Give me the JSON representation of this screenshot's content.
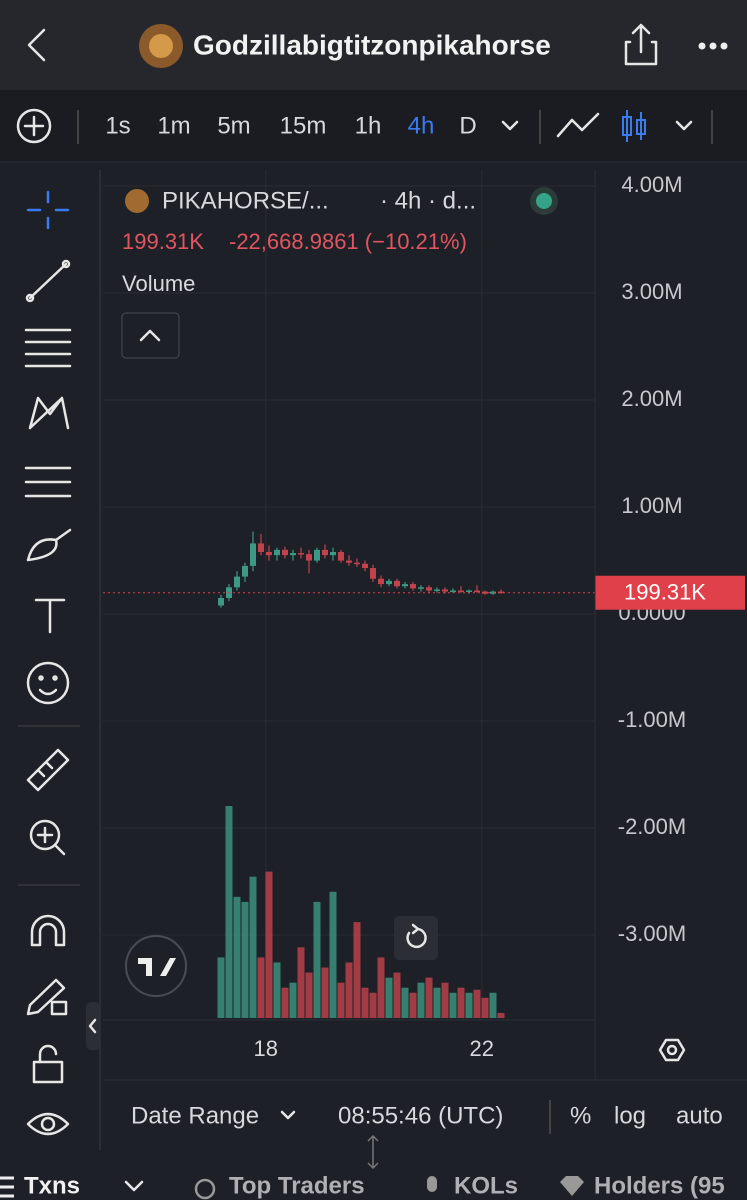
{
  "header": {
    "title": "Godzillabigtitzonpikahorse"
  },
  "toolbar": {
    "timeframes": [
      "1s",
      "1m",
      "5m",
      "15m",
      "1h",
      "4h",
      "D"
    ],
    "active": 5
  },
  "legend": {
    "symbol": "PIKAHORSE/...",
    "interval": "· 4h · d...",
    "price": "199.31K",
    "change": "-22,668.9861 (−10.21%)",
    "study": "Volume"
  },
  "chart": {
    "type": "candlestick",
    "ylim": [
      -3794000,
      4150000
    ],
    "yticks": [
      {
        "value": 4000000,
        "label": "4.00M"
      },
      {
        "value": 3000000,
        "label": "3.00M"
      },
      {
        "value": 2000000,
        "label": "2.00M"
      },
      {
        "value": 1000000,
        "label": "1.00M"
      },
      {
        "value": 0,
        "label": "0.0000"
      },
      {
        "value": -1000000,
        "label": "-1.00M"
      },
      {
        "value": -2000000,
        "label": "-2.00M"
      },
      {
        "value": -3000000,
        "label": "-3.00M"
      }
    ],
    "xticks": [
      {
        "index": 5.6,
        "label": "18"
      },
      {
        "index": 32.6,
        "label": "22"
      }
    ],
    "last_price": {
      "value": 199310,
      "label": "199.31K"
    },
    "up_color": "#3d9984",
    "down_color": "#c2434c",
    "candles": [
      {
        "open": 80000,
        "high": 180000,
        "low": 60000,
        "close": 150000
      },
      {
        "open": 150000,
        "high": 280000,
        "low": 120000,
        "close": 250000
      },
      {
        "open": 250000,
        "high": 400000,
        "low": 220000,
        "close": 350000
      },
      {
        "open": 350000,
        "high": 480000,
        "low": 300000,
        "close": 450000
      },
      {
        "open": 450000,
        "high": 770000,
        "low": 400000,
        "close": 660000
      },
      {
        "open": 660000,
        "high": 750000,
        "low": 550000,
        "close": 580000
      },
      {
        "open": 580000,
        "high": 640000,
        "low": 500000,
        "close": 550000
      },
      {
        "open": 550000,
        "high": 620000,
        "low": 500000,
        "close": 600000
      },
      {
        "open": 600000,
        "high": 630000,
        "low": 520000,
        "close": 550000
      },
      {
        "open": 550000,
        "high": 600000,
        "low": 500000,
        "close": 570000
      },
      {
        "open": 570000,
        "high": 620000,
        "low": 520000,
        "close": 560000
      },
      {
        "open": 560000,
        "high": 600000,
        "low": 380000,
        "close": 500000
      },
      {
        "open": 500000,
        "high": 620000,
        "low": 480000,
        "close": 600000
      },
      {
        "open": 600000,
        "high": 650000,
        "low": 520000,
        "close": 550000
      },
      {
        "open": 550000,
        "high": 620000,
        "low": 500000,
        "close": 580000
      },
      {
        "open": 580000,
        "high": 600000,
        "low": 480000,
        "close": 500000
      },
      {
        "open": 500000,
        "high": 550000,
        "low": 450000,
        "close": 480000
      },
      {
        "open": 480000,
        "high": 520000,
        "low": 440000,
        "close": 470000
      },
      {
        "open": 470000,
        "high": 500000,
        "low": 400000,
        "close": 430000
      },
      {
        "open": 430000,
        "high": 460000,
        "low": 300000,
        "close": 330000
      },
      {
        "open": 330000,
        "high": 360000,
        "low": 250000,
        "close": 280000
      },
      {
        "open": 280000,
        "high": 330000,
        "low": 260000,
        "close": 310000
      },
      {
        "open": 310000,
        "high": 330000,
        "low": 240000,
        "close": 260000
      },
      {
        "open": 260000,
        "high": 300000,
        "low": 240000,
        "close": 280000
      },
      {
        "open": 280000,
        "high": 300000,
        "low": 220000,
        "close": 240000
      },
      {
        "open": 240000,
        "high": 270000,
        "low": 210000,
        "close": 250000
      },
      {
        "open": 250000,
        "high": 270000,
        "low": 200000,
        "close": 220000
      },
      {
        "open": 220000,
        "high": 250000,
        "low": 200000,
        "close": 230000
      },
      {
        "open": 230000,
        "high": 250000,
        "low": 190000,
        "close": 210000
      },
      {
        "open": 210000,
        "high": 240000,
        "low": 200000,
        "close": 220000
      },
      {
        "open": 220000,
        "high": 260000,
        "low": 200000,
        "close": 210000
      },
      {
        "open": 210000,
        "high": 230000,
        "low": 190000,
        "close": 220000
      },
      {
        "open": 220000,
        "high": 270000,
        "low": 200000,
        "close": 210000
      },
      {
        "open": 210000,
        "high": 220000,
        "low": 180000,
        "close": 190000
      },
      {
        "open": 190000,
        "high": 220000,
        "low": 180000,
        "close": 210000
      },
      {
        "open": 210000,
        "high": 230000,
        "low": 190000,
        "close": 199310
      }
    ],
    "volume": [
      60,
      210,
      120,
      115,
      140,
      60,
      145,
      55,
      30,
      35,
      70,
      45,
      115,
      50,
      125,
      35,
      55,
      95,
      30,
      25,
      60,
      40,
      45,
      30,
      25,
      35,
      40,
      30,
      35,
      25,
      30,
      25,
      28,
      20,
      25,
      5
    ]
  },
  "bottom_bar": {
    "date_range": "Date Range",
    "time": "08:55:46 (UTC)",
    "percent": "%",
    "log": "log",
    "auto": "auto"
  },
  "tabs": [
    "Txns",
    "Top Traders",
    "KOLs",
    "Holders (95"
  ]
}
